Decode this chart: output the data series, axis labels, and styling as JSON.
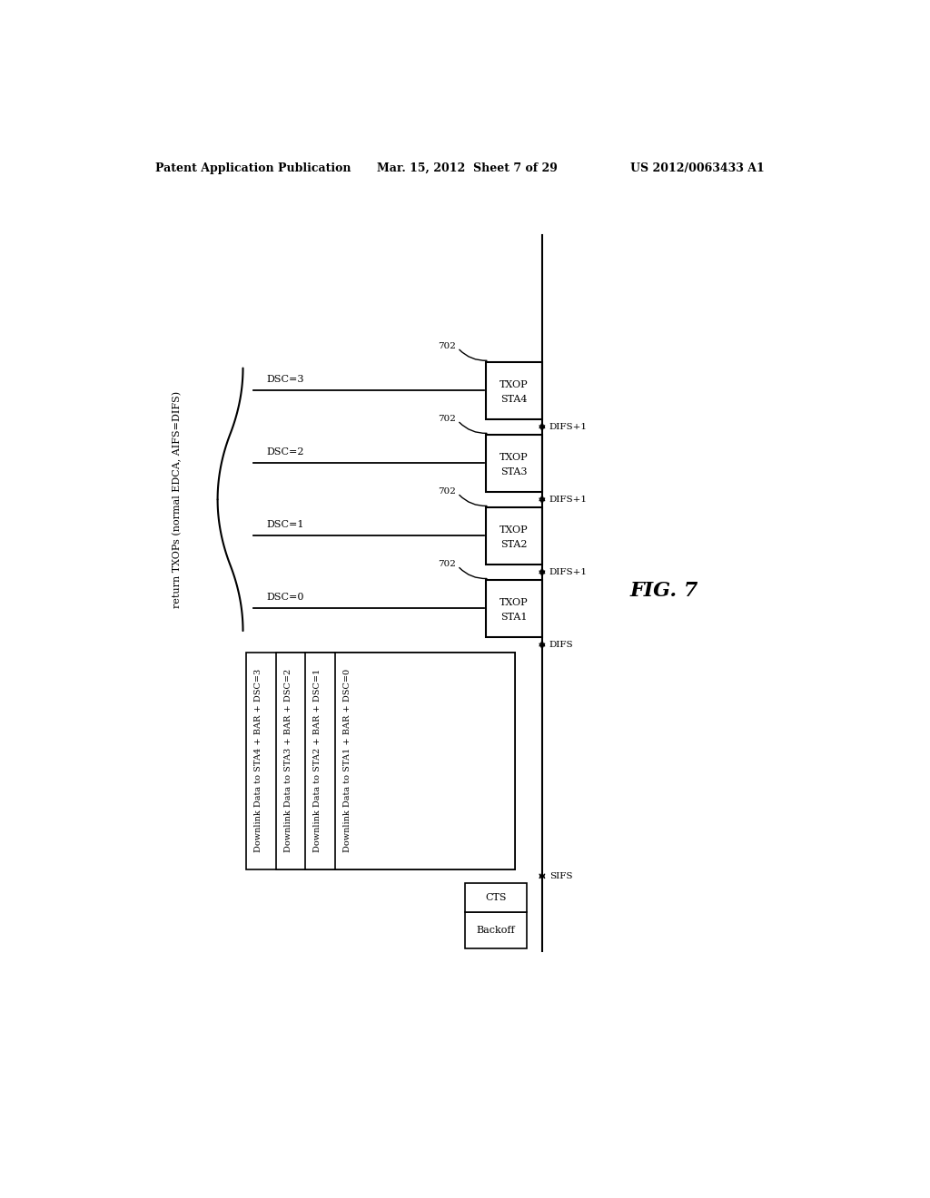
{
  "bg_color": "#ffffff",
  "header_left": "Patent Application Publication",
  "header_mid": "Mar. 15, 2012  Sheet 7 of 29",
  "header_right": "US 2012/0063433 A1",
  "fig_label": "FIG. 7",
  "title_rotated": "return TXOPs (normal EDCA, AIFS=DIFS)",
  "dsc_labels": [
    "DSC=0",
    "DSC=1",
    "DSC=2",
    "DSC=3"
  ],
  "txop_labels": [
    [
      "TXOP",
      "STA1"
    ],
    [
      "TXOP",
      "STA2"
    ],
    [
      "TXOP",
      "STA3"
    ],
    [
      "TXOP",
      "STA4"
    ]
  ],
  "ref_number": "702",
  "difs_label": "DIFS",
  "difs_plus_labels": [
    "DIFS+1",
    "DIFS+1",
    "DIFS+1"
  ],
  "sifs_label": "SIFS",
  "cts_label": "CTS",
  "backoff_label": "Backoff",
  "downlink_labels": [
    "Downlink Data to STA4 + BAR + DSC=3",
    "Downlink Data to STA3 + BAR + DSC=2",
    "Downlink Data to STA2 + BAR + DSC=1",
    "Downlink Data to STA1 + BAR + DSC=0"
  ]
}
